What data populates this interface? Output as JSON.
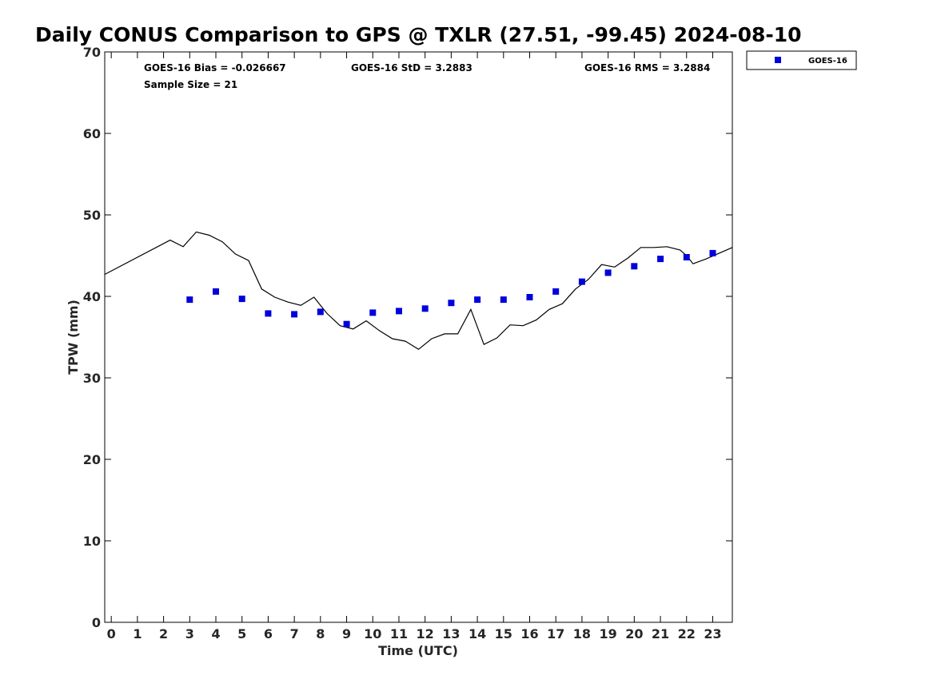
{
  "chart_data": {
    "type": "scatter",
    "title": "Daily CONUS Comparison to GPS @ TXLR (27.51, -99.45) 2024-08-10",
    "xlabel": "Time (UTC)",
    "ylabel": "TPW (mm)",
    "xlim": [
      -0.25,
      23.75
    ],
    "ylim": [
      0,
      70
    ],
    "x_ticks": [
      "0",
      "1",
      "2",
      "3",
      "4",
      "5",
      "6",
      "7",
      "8",
      "9",
      "10",
      "11",
      "12",
      "13",
      "14",
      "15",
      "16",
      "17",
      "18",
      "19",
      "20",
      "21",
      "22",
      "23"
    ],
    "y_ticks": [
      "0",
      "10",
      "20",
      "30",
      "40",
      "50",
      "60",
      "70"
    ],
    "grid": false,
    "legend_position": "top-right, outside plot",
    "colors": {
      "goes": "#0000dd",
      "gps": "#000000"
    },
    "stats": {
      "bias": "GOES-16 Bias = -0.026667",
      "std": "GOES-16 StD = 3.2883",
      "rms": "GOES-16 RMS = 3.2884",
      "sample": "Sample Size = 21"
    },
    "series": [
      {
        "name": "GOES-16",
        "kind": "markers",
        "x": [
          3,
          4,
          5,
          6,
          7,
          8,
          9,
          10,
          11,
          12,
          13,
          14,
          15,
          16,
          17,
          18,
          19,
          20,
          21,
          22,
          23
        ],
        "y": [
          39.6,
          40.6,
          39.7,
          37.9,
          37.8,
          38.1,
          36.6,
          38.0,
          38.2,
          38.5,
          39.2,
          39.6,
          39.6,
          39.9,
          40.6,
          41.8,
          42.9,
          43.7,
          44.6,
          44.8,
          45.3
        ]
      },
      {
        "kind": "line",
        "x": [
          -0.25,
          2.25,
          2.75,
          3.25,
          3.75,
          4.25,
          4.75,
          5.25,
          5.75,
          6.25,
          6.75,
          7.25,
          7.75,
          8.25,
          8.75,
          9.25,
          9.75,
          10.25,
          10.75,
          11.25,
          11.75,
          12.25,
          12.75,
          13.25,
          13.75,
          14.25,
          14.75,
          15.25,
          15.75,
          16.25,
          16.75,
          17.25,
          17.75,
          18.25,
          18.75,
          19.25,
          19.75,
          20.25,
          20.75,
          21.25,
          21.75,
          22.0,
          22.25,
          22.75,
          23.25,
          23.75
        ],
        "y": [
          42.7,
          46.9,
          46.1,
          47.9,
          47.5,
          46.7,
          45.2,
          44.4,
          40.9,
          39.9,
          39.3,
          38.9,
          39.9,
          37.9,
          36.4,
          36.0,
          37.0,
          35.8,
          34.8,
          34.5,
          33.5,
          34.8,
          35.4,
          35.4,
          38.4,
          34.1,
          34.9,
          36.5,
          36.4,
          37.1,
          38.4,
          39.1,
          40.9,
          42.1,
          43.9,
          43.6,
          44.7,
          46.0,
          46.0,
          46.1,
          45.7,
          45.0,
          44.0,
          44.6,
          45.3,
          46.0
        ]
      }
    ]
  }
}
